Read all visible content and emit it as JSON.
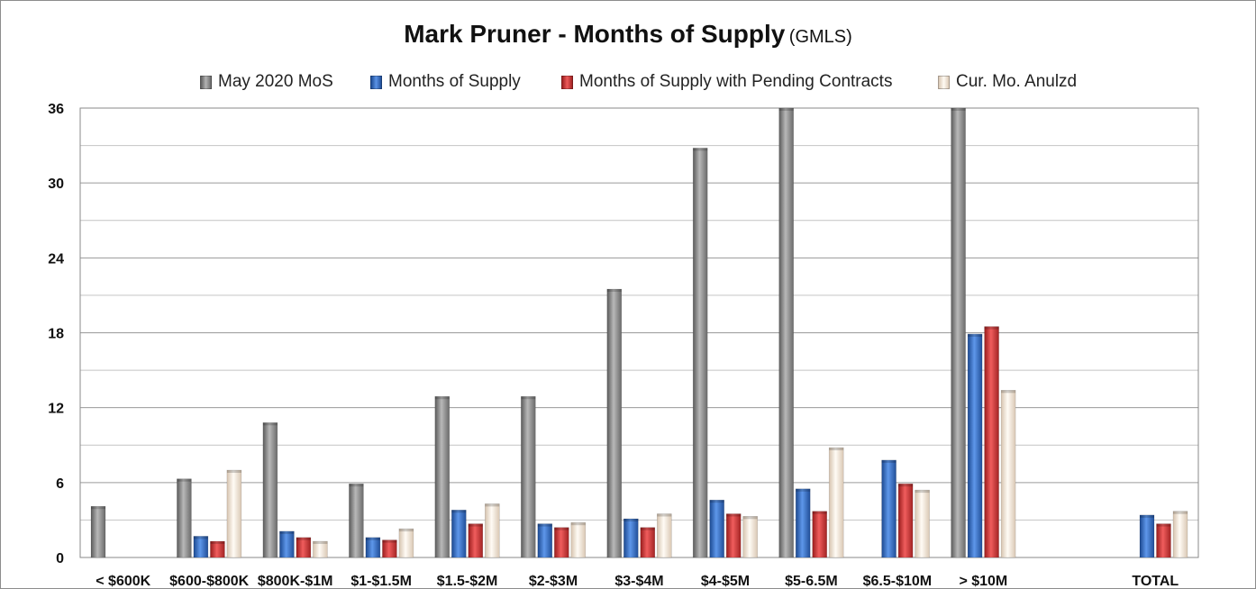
{
  "chart_data": {
    "type": "bar",
    "title": "Mark Pruner - Months of Supply",
    "subtitle": "(GMLS)",
    "categories": [
      "< $600K",
      "$600-$800K",
      "$800K-$1M",
      "$1-$1.5M",
      "$1.5-$2M",
      "$2-$3M",
      "$3-$4M",
      "$4-$5M",
      "$5-6.5M",
      "$6.5-$10M",
      "> $10M",
      "",
      "TOTAL"
    ],
    "series": [
      {
        "name": "May 2020 MoS",
        "color": "#8c8c8c",
        "values": [
          4.1,
          6.3,
          10.8,
          5.9,
          12.9,
          12.9,
          21.5,
          32.8,
          36,
          null,
          36,
          null,
          null
        ]
      },
      {
        "name": "Months of Supply",
        "color": "#2f6fc9",
        "values": [
          null,
          1.7,
          2.1,
          1.6,
          3.8,
          2.7,
          3.1,
          4.6,
          5.5,
          7.8,
          17.9,
          null,
          3.4
        ]
      },
      {
        "name": "Months of Supply with Pending Contracts",
        "color": "#d13636",
        "values": [
          null,
          1.3,
          1.6,
          1.4,
          2.7,
          2.4,
          2.4,
          3.5,
          3.7,
          5.9,
          18.5,
          null,
          2.7
        ]
      },
      {
        "name": "Cur. Mo. Anulzd",
        "color": "#f2e6d8",
        "values": [
          null,
          7.0,
          1.3,
          2.3,
          4.3,
          2.8,
          3.5,
          3.3,
          8.8,
          5.4,
          13.4,
          null,
          3.7
        ]
      }
    ],
    "ylim": [
      0,
      36
    ],
    "yticks": [
      0,
      6,
      12,
      18,
      24,
      30,
      36
    ],
    "grid": true,
    "legend": "top"
  }
}
